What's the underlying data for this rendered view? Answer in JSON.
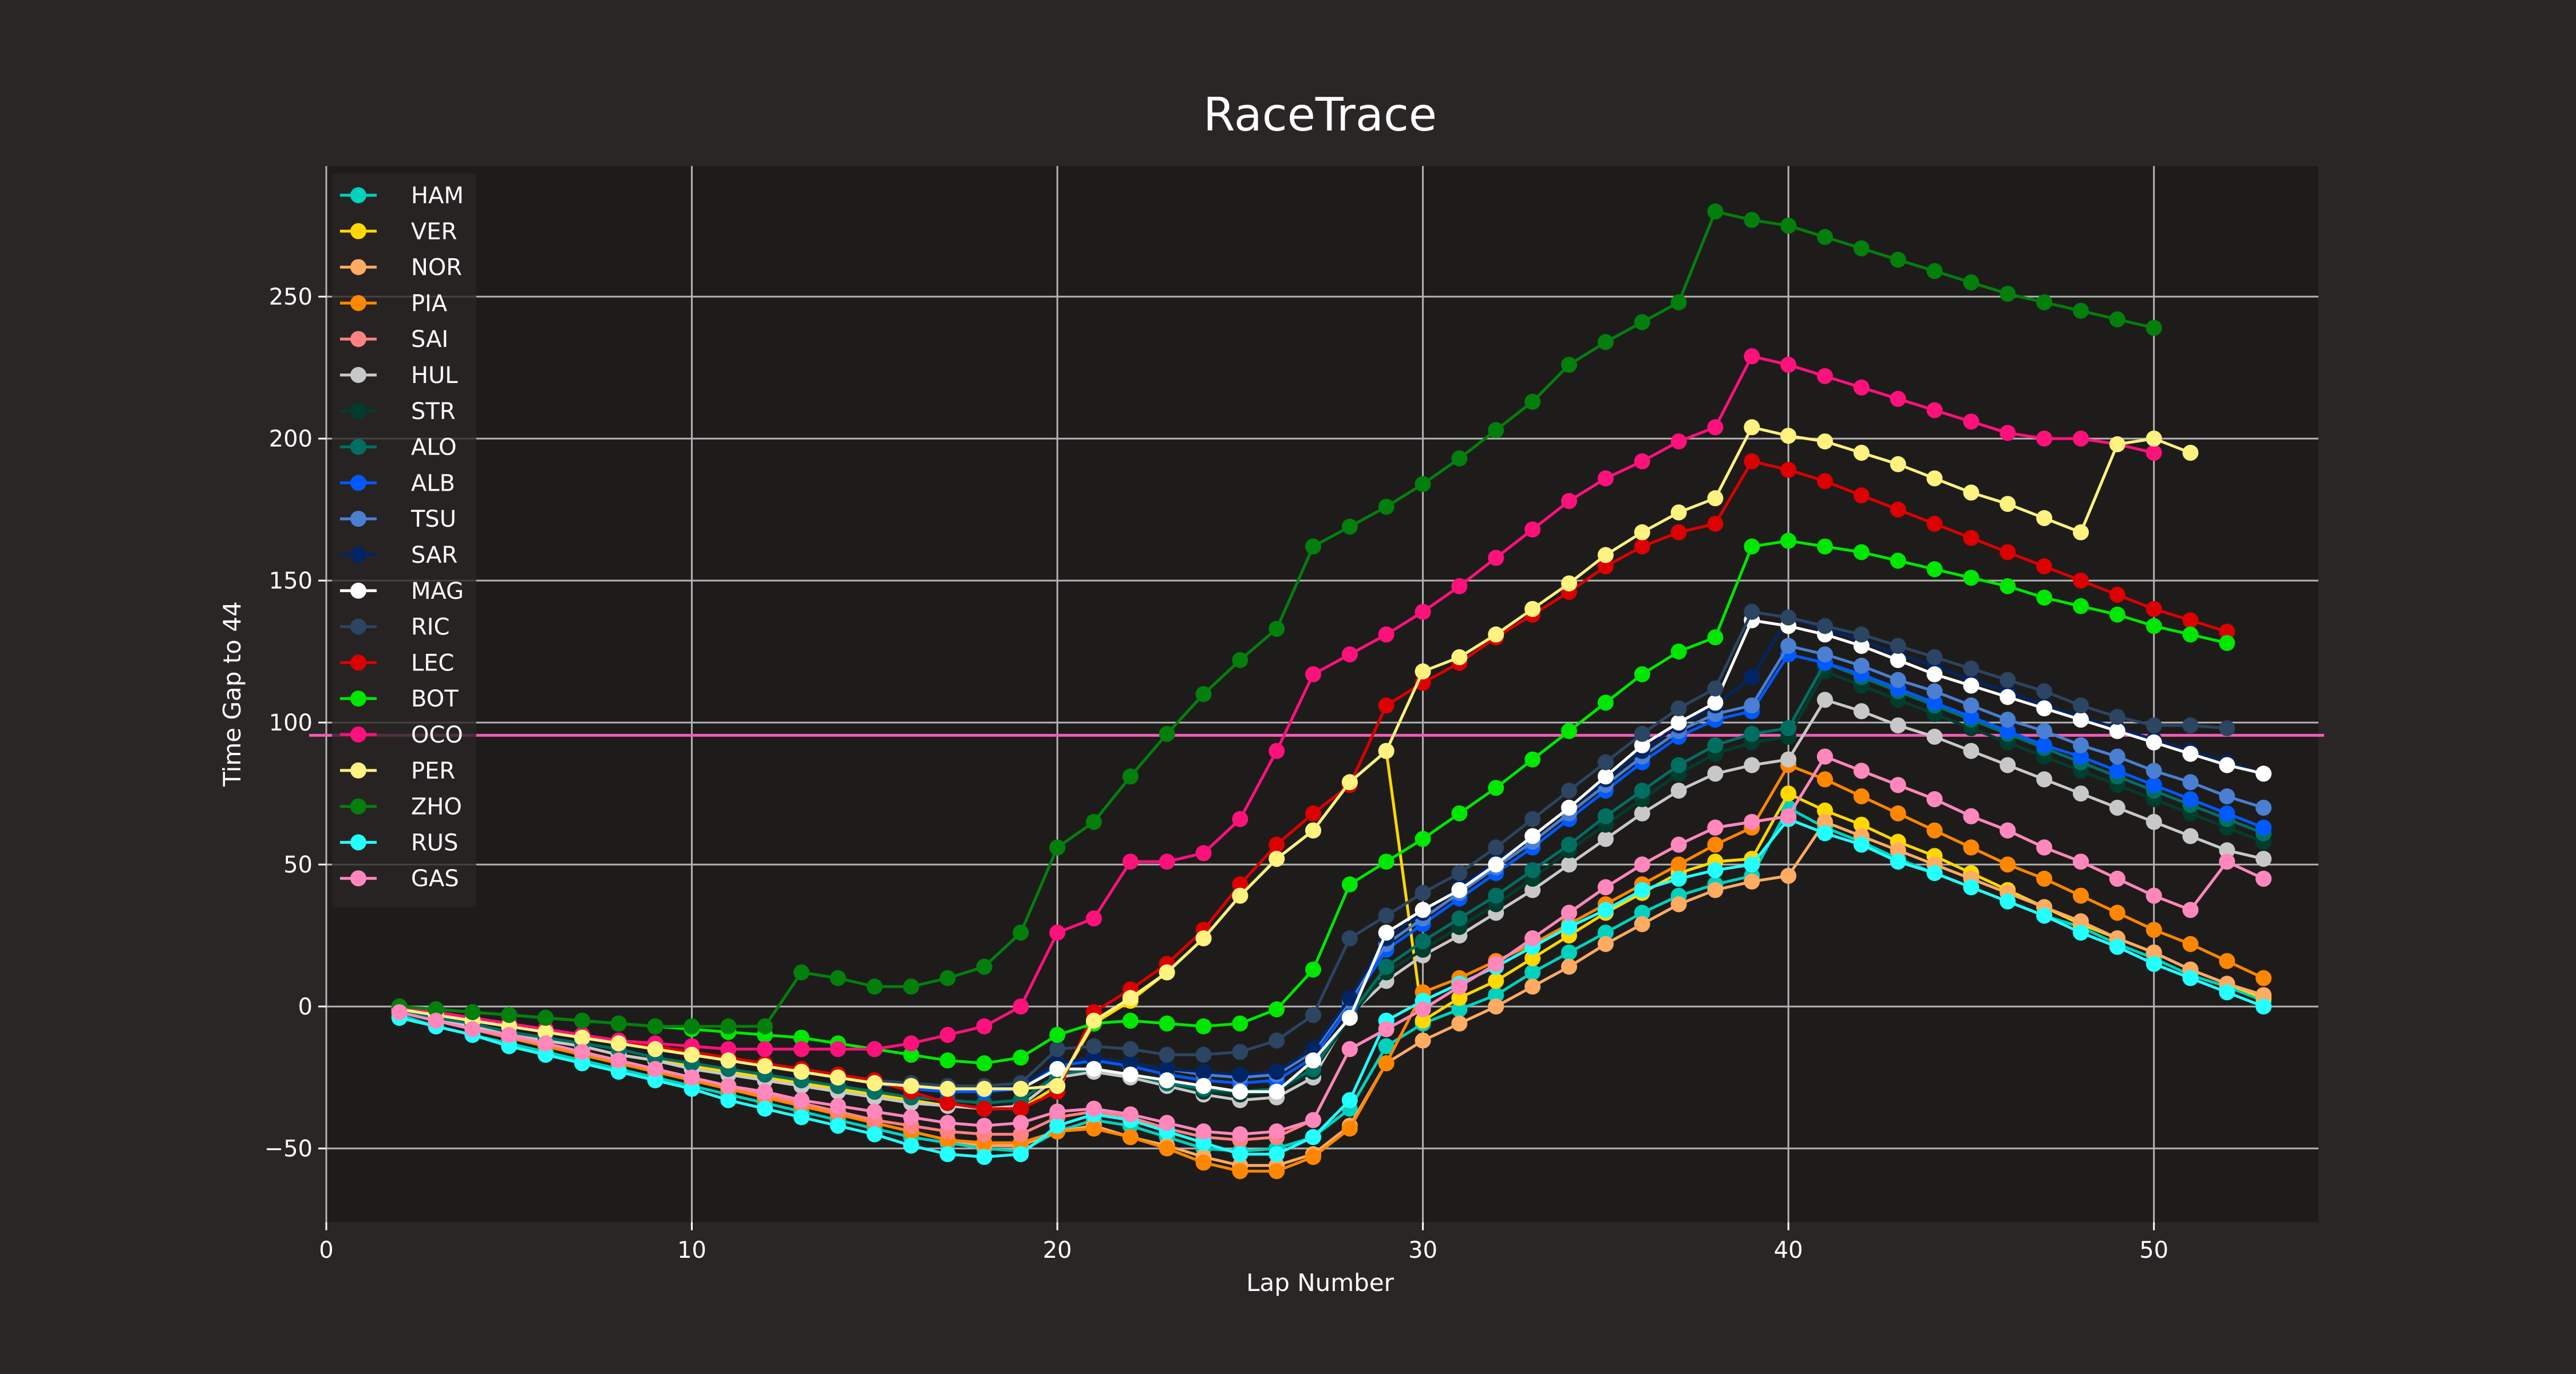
{
  "chart_data": {
    "type": "line",
    "title": "RaceTrace",
    "xlabel": "Lap Number",
    "ylabel": "Time Gap to 44",
    "xlim": [
      0,
      54.5
    ],
    "ylim": [
      -76,
      296
    ],
    "xticks": [
      0,
      10,
      20,
      30,
      40,
      50
    ],
    "yticks": [
      -50,
      0,
      50,
      100,
      150,
      200,
      250
    ],
    "grid": true,
    "legend_position": "upper-left",
    "reference_lines": [
      {
        "orientation": "horizontal",
        "y": 95.5,
        "color": "#f05cb3"
      }
    ],
    "colors": {
      "figure_background": "#292625",
      "plot_background": "#1e1c1b",
      "grid": "#b3b3b3",
      "text": "#ffffff"
    },
    "series": [
      {
        "name": "HAM",
        "color": "#00d2be",
        "x_start": 2,
        "values": [
          -3,
          -7,
          -10,
          -13,
          -16,
          -19,
          -22,
          -25,
          -28,
          -31,
          -34,
          -37,
          -40,
          -43,
          -46,
          -48,
          -50,
          -51,
          -44,
          -40,
          -42,
          -46,
          -50,
          -51,
          -50,
          -46,
          -36,
          -14,
          -6,
          -1,
          4,
          12,
          19,
          26,
          33,
          39,
          43,
          46,
          70,
          63,
          58,
          52,
          47,
          42,
          37,
          32,
          28,
          22,
          17,
          11,
          7,
          2
        ]
      },
      {
        "name": "VER",
        "color": "#ffd800",
        "x_start": 2,
        "values": [
          -1,
          -4,
          -7,
          -9,
          -12,
          -14,
          -17,
          -19,
          -21,
          -23,
          -25,
          -27,
          -29,
          -31,
          -33,
          -35,
          -36,
          -36,
          -28,
          -6,
          2,
          12,
          24,
          39,
          52,
          62,
          79,
          90,
          -5,
          3,
          9,
          17,
          25,
          33,
          40,
          47,
          51,
          52,
          75,
          69,
          64,
          58,
          53,
          47,
          41,
          35,
          29,
          24,
          19,
          13,
          8,
          3
        ]
      },
      {
        "name": "NOR",
        "color": "#ffab62",
        "x_start": 2,
        "values": [
          -2,
          -5,
          -8,
          -11,
          -14,
          -17,
          -20,
          -23,
          -26,
          -29,
          -32,
          -35,
          -38,
          -41,
          -44,
          -47,
          -49,
          -49,
          -44,
          -42,
          -46,
          -49,
          -53,
          -56,
          -56,
          -52,
          -42,
          -20,
          -12,
          -6,
          0,
          7,
          14,
          22,
          29,
          36,
          41,
          44,
          46,
          65,
          60,
          55,
          50,
          45,
          40,
          35,
          30,
          24,
          19,
          13,
          8,
          4
        ]
      },
      {
        "name": "PIA",
        "color": "#ff8700",
        "x_start": 2,
        "values": [
          -2,
          -5,
          -8,
          -11,
          -14,
          -17,
          -20,
          -23,
          -26,
          -29,
          -32,
          -35,
          -38,
          -41,
          -44,
          -47,
          -48,
          -48,
          -44,
          -43,
          -46,
          -50,
          -55,
          -58,
          -58,
          -53,
          -43,
          -20,
          5,
          10,
          16,
          22,
          29,
          36,
          43,
          50,
          57,
          63,
          85,
          80,
          74,
          68,
          62,
          56,
          50,
          45,
          39,
          33,
          27,
          22,
          16,
          10
        ]
      },
      {
        "name": "SAI",
        "color": "#ff8181",
        "x_start": 2,
        "values": [
          -2,
          -5,
          -8,
          -11,
          -13,
          -16,
          -19,
          -22,
          -25,
          -28,
          -31,
          -34,
          -37,
          -40,
          -42,
          -44,
          -45,
          -45,
          -39,
          -37,
          -39,
          -43,
          -46,
          -47,
          -46,
          -40,
          -15,
          -8,
          -1,
          7,
          15,
          24,
          33,
          42,
          50,
          57,
          63,
          65,
          67,
          88,
          83,
          78,
          73,
          67,
          62,
          56,
          51,
          45,
          39,
          34,
          51,
          45
        ]
      },
      {
        "name": "HUL",
        "color": "#c8c8c8",
        "x_start": 2,
        "values": [
          -2,
          -4,
          -7,
          -9,
          -12,
          -14,
          -17,
          -19,
          -22,
          -24,
          -26,
          -28,
          -30,
          -32,
          -34,
          -35,
          -36,
          -35,
          -25,
          -23,
          -25,
          -28,
          -31,
          -33,
          -32,
          -25,
          -3,
          9,
          18,
          25,
          33,
          41,
          50,
          59,
          68,
          76,
          82,
          85,
          87,
          108,
          104,
          99,
          95,
          90,
          85,
          80,
          75,
          70,
          65,
          60,
          55,
          52
        ]
      },
      {
        "name": "STR",
        "color": "#003d2c",
        "x_start": 2,
        "values": [
          -2,
          -4,
          -6,
          -9,
          -11,
          -13,
          -15,
          -18,
          -20,
          -22,
          -24,
          -26,
          -28,
          -30,
          -32,
          -33,
          -34,
          -33,
          -24,
          -22,
          -24,
          -27,
          -30,
          -31,
          -30,
          -23,
          -4,
          12,
          20,
          28,
          36,
          45,
          55,
          64,
          73,
          82,
          89,
          93,
          95,
          118,
          113,
          108,
          103,
          98,
          93,
          88,
          83,
          78,
          73,
          68,
          63,
          58
        ]
      },
      {
        "name": "ALO",
        "color": "#006f62",
        "x_start": 2,
        "values": [
          -2,
          -4,
          -6,
          -9,
          -11,
          -13,
          -15,
          -18,
          -20,
          -22,
          -24,
          -26,
          -28,
          -30,
          -32,
          -33,
          -34,
          -33,
          -24,
          -22,
          -24,
          -27,
          -29,
          -30,
          -29,
          -22,
          -3,
          14,
          23,
          31,
          39,
          48,
          57,
          67,
          76,
          85,
          92,
          96,
          98,
          121,
          116,
          111,
          106,
          101,
          96,
          91,
          86,
          81,
          76,
          71,
          66,
          61
        ]
      },
      {
        "name": "ALB",
        "color": "#005aff",
        "x_start": 2,
        "values": [
          -1,
          -3,
          -5,
          -7,
          -9,
          -11,
          -13,
          -15,
          -17,
          -19,
          -21,
          -23,
          -25,
          -27,
          -29,
          -30,
          -30,
          -29,
          -21,
          -19,
          -21,
          -24,
          -26,
          -27,
          -26,
          -18,
          0,
          20,
          29,
          38,
          47,
          56,
          66,
          76,
          86,
          95,
          101,
          104,
          124,
          121,
          117,
          112,
          107,
          102,
          97,
          92,
          88,
          83,
          78,
          73,
          68,
          63
        ]
      },
      {
        "name": "TSU",
        "color": "#4a7fd1",
        "x_start": 2,
        "values": [
          -1,
          -3,
          -5,
          -7,
          -9,
          -11,
          -13,
          -15,
          -17,
          -19,
          -21,
          -23,
          -25,
          -27,
          -28,
          -29,
          -29,
          -28,
          -20,
          -18,
          -20,
          -22,
          -24,
          -25,
          -24,
          -16,
          2,
          22,
          31,
          40,
          49,
          58,
          68,
          78,
          88,
          97,
          103,
          106,
          127,
          124,
          120,
          115,
          111,
          106,
          101,
          97,
          92,
          88,
          83,
          79,
          74,
          70
        ]
      },
      {
        "name": "SAR",
        "color": "#012564",
        "x_start": 2,
        "values": [
          -1,
          -3,
          -5,
          -7,
          -9,
          -11,
          -13,
          -15,
          -17,
          -19,
          -21,
          -23,
          -25,
          -27,
          -28,
          -29,
          -29,
          -28,
          -20,
          -18,
          -20,
          -22,
          -23,
          -24,
          -23,
          -15,
          3,
          24,
          33,
          42,
          51,
          60,
          70,
          80,
          90,
          99,
          106,
          116,
          137,
          133,
          129,
          124,
          120,
          115,
          111,
          106,
          102,
          98,
          94,
          90,
          86,
          82
        ]
      },
      {
        "name": "MAG",
        "color": "#ffffff",
        "x_start": 2,
        "values": [
          -1,
          -3,
          -5,
          -7,
          -9,
          -11,
          -13,
          -15,
          -17,
          -19,
          -21,
          -23,
          -25,
          -27,
          -28,
          -29,
          -29,
          -29,
          -22,
          -22,
          -24,
          -26,
          -28,
          -30,
          -30,
          -19,
          -4,
          26,
          34,
          41,
          50,
          60,
          70,
          81,
          92,
          100,
          107,
          136,
          134,
          131,
          127,
          122,
          117,
          113,
          109,
          105,
          101,
          97,
          93,
          89,
          85,
          82
        ]
      },
      {
        "name": "RIC",
        "color": "#2b4562",
        "x_start": 2,
        "values": [
          -1,
          -3,
          -5,
          -7,
          -9,
          -11,
          -13,
          -15,
          -17,
          -19,
          -21,
          -22,
          -24,
          -26,
          -27,
          -28,
          -28,
          -27,
          -15,
          -14,
          -15,
          -17,
          -17,
          -16,
          -12,
          -3,
          24,
          32,
          40,
          47,
          56,
          66,
          76,
          86,
          96,
          105,
          112,
          139,
          137,
          134,
          131,
          127,
          123,
          119,
          115,
          111,
          106,
          102,
          99,
          99,
          98
        ]
      },
      {
        "name": "LEC",
        "color": "#dc0000",
        "x_start": 2,
        "values": [
          0,
          -2,
          -4,
          -6,
          -8,
          -10,
          -12,
          -14,
          -16,
          -18,
          -20,
          -22,
          -24,
          -26,
          -30,
          -34,
          -36,
          -36,
          -30,
          -2,
          6,
          15,
          27,
          43,
          57,
          68,
          78,
          106,
          114,
          121,
          130,
          138,
          146,
          155,
          162,
          167,
          170,
          192,
          189,
          185,
          180,
          175,
          170,
          165,
          160,
          155,
          150,
          145,
          140,
          136,
          132
        ]
      },
      {
        "name": "BOT",
        "color": "#00e701",
        "x_start": 2,
        "values": [
          0,
          -1,
          -2,
          -3,
          -4,
          -5,
          -6,
          -7,
          -8,
          -9,
          -10,
          -11,
          -13,
          -15,
          -17,
          -19,
          -20,
          -18,
          -10,
          -6,
          -5,
          -6,
          -7,
          -6,
          -1,
          13,
          43,
          51,
          59,
          68,
          77,
          87,
          97,
          107,
          117,
          125,
          130,
          162,
          164,
          162,
          160,
          157,
          154,
          151,
          148,
          144,
          141,
          138,
          134,
          131,
          128
        ]
      },
      {
        "name": "OCO",
        "color": "#ff117c",
        "x_start": 2,
        "values": [
          0,
          -2,
          -4,
          -6,
          -8,
          -10,
          -12,
          -13,
          -14,
          -15,
          -15,
          -15,
          -15,
          -15,
          -13,
          -10,
          -7,
          0,
          26,
          31,
          51,
          51,
          54,
          66,
          90,
          117,
          124,
          131,
          139,
          148,
          158,
          168,
          178,
          186,
          192,
          199,
          204,
          229,
          226,
          222,
          218,
          214,
          210,
          206,
          202,
          200,
          200,
          198,
          195
        ]
      },
      {
        "name": "PER",
        "color": "#fff27f",
        "x_start": 2,
        "values": [
          -1,
          -3,
          -5,
          -7,
          -9,
          -11,
          -13,
          -15,
          -17,
          -19,
          -21,
          -23,
          -25,
          -27,
          -28,
          -29,
          -29,
          -29,
          -28,
          -5,
          3,
          12,
          24,
          39,
          52,
          62,
          79,
          90,
          118,
          123,
          131,
          140,
          149,
          159,
          167,
          174,
          179,
          204,
          201,
          199,
          195,
          191,
          186,
          181,
          177,
          172,
          167,
          198,
          200,
          195
        ]
      },
      {
        "name": "ZHO",
        "color": "#037f0c",
        "x_start": 2,
        "values": [
          0,
          -1,
          -2,
          -3,
          -4,
          -5,
          -6,
          -7,
          -7,
          -7,
          -7,
          12,
          10,
          7,
          7,
          10,
          14,
          26,
          56,
          65,
          81,
          96,
          110,
          122,
          133,
          162,
          169,
          176,
          184,
          193,
          203,
          213,
          226,
          234,
          241,
          248,
          280,
          277,
          275,
          271,
          267,
          263,
          259,
          255,
          251,
          248,
          245,
          242,
          239
        ]
      },
      {
        "name": "RUS",
        "color": "#24ffff",
        "x_start": 2,
        "values": [
          -4,
          -7,
          -10,
          -14,
          -17,
          -20,
          -23,
          -26,
          -29,
          -33,
          -36,
          -39,
          -42,
          -45,
          -49,
          -52,
          -53,
          -52,
          -42,
          -38,
          -40,
          -44,
          -48,
          -52,
          -52,
          -46,
          -33,
          -5,
          2,
          8,
          14,
          21,
          28,
          34,
          41,
          45,
          48,
          50,
          66,
          61,
          57,
          51,
          47,
          42,
          37,
          32,
          26,
          21,
          15,
          10,
          5,
          0
        ]
      },
      {
        "name": "GAS",
        "color": "#ff87bc",
        "x_start": 2,
        "values": [
          -2,
          -5,
          -8,
          -10,
          -13,
          -16,
          -19,
          -22,
          -25,
          -28,
          -30,
          -33,
          -35,
          -37,
          -39,
          -41,
          -42,
          -41,
          -37,
          -36,
          -38,
          -41,
          -44,
          -45,
          -44,
          -40,
          -15,
          -8,
          -1,
          7,
          15,
          24,
          33,
          42,
          50,
          57,
          63,
          65,
          67,
          88,
          83,
          78,
          73,
          67,
          62,
          56,
          51,
          45,
          39,
          34,
          51,
          45
        ]
      }
    ]
  }
}
